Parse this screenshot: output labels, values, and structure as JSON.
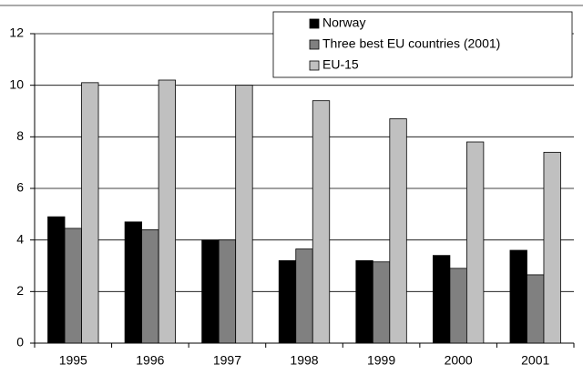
{
  "chart_data": {
    "type": "bar",
    "categories": [
      "1995",
      "1996",
      "1997",
      "1998",
      "1999",
      "2000",
      "2001"
    ],
    "series": [
      {
        "name": "Norway",
        "color": "#000000",
        "values": [
          4.9,
          4.7,
          4.0,
          3.2,
          3.2,
          3.4,
          3.6
        ]
      },
      {
        "name": "Three best EU countries (2001)",
        "color": "#808080",
        "values": [
          4.45,
          4.4,
          4.0,
          3.65,
          3.15,
          2.9,
          2.65
        ]
      },
      {
        "name": "EU-15",
        "color": "#c0c0c0",
        "values": [
          10.1,
          10.2,
          10.0,
          9.4,
          8.7,
          7.8,
          7.4
        ]
      }
    ],
    "ylim": [
      0,
      12
    ],
    "yticks": [
      0,
      2,
      4,
      6,
      8,
      10,
      12
    ],
    "grid": true,
    "legend": "upper right"
  }
}
